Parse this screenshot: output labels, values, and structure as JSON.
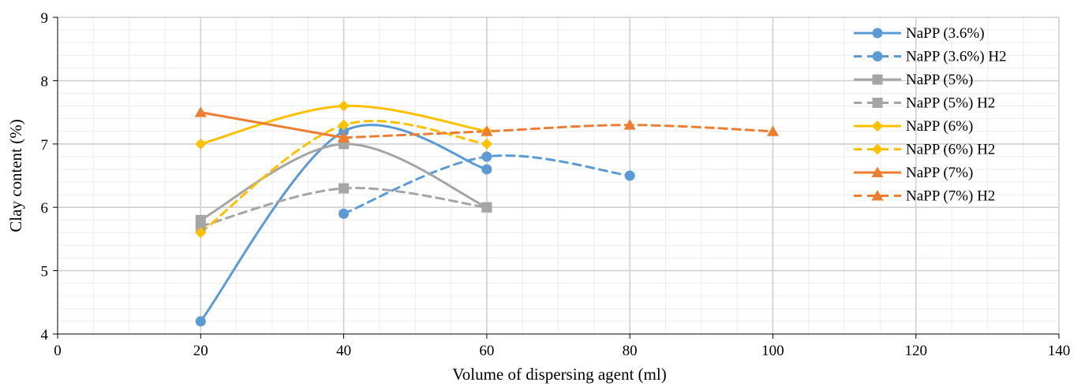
{
  "chart_data": {
    "type": "line",
    "title": "",
    "xlabel": "Volume of dispersing agent (ml)",
    "ylabel": "Clay content (%)",
    "xlim": [
      0,
      140
    ],
    "ylim": [
      4,
      9
    ],
    "xticks": [
      0,
      20,
      40,
      60,
      80,
      100,
      120,
      140
    ],
    "yticks": [
      4,
      5,
      6,
      7,
      8,
      9
    ],
    "x_tick_labels": [
      "0",
      "20",
      "40",
      "60",
      "80",
      "100",
      "120",
      "140"
    ],
    "y_tick_labels": [
      "4",
      "5",
      "6",
      "7",
      "8",
      "9"
    ],
    "grid": true,
    "minor_grid": true,
    "smooth": true,
    "legend_position": "right",
    "series": [
      {
        "name": "NaPP (3.6%)",
        "color": "#5b9bd5",
        "dash": "solid",
        "marker": "circle",
        "x": [
          20,
          40,
          60
        ],
        "y": [
          4.2,
          7.2,
          6.6
        ]
      },
      {
        "name": "NaPP (3.6%) H2",
        "color": "#5b9bd5",
        "dash": "dashed",
        "marker": "circle",
        "x": [
          40,
          60,
          80
        ],
        "y": [
          5.9,
          6.8,
          6.5
        ]
      },
      {
        "name": "NaPP (5%)",
        "color": "#a5a5a5",
        "dash": "solid",
        "marker": "square",
        "x": [
          20,
          40,
          60
        ],
        "y": [
          5.8,
          7.0,
          6.0
        ]
      },
      {
        "name": "NaPP (5%) H2",
        "color": "#a5a5a5",
        "dash": "dashed",
        "marker": "square",
        "x": [
          20,
          40,
          60
        ],
        "y": [
          5.7,
          6.3,
          6.0
        ]
      },
      {
        "name": "NaPP (6%)",
        "color": "#ffc000",
        "dash": "solid",
        "marker": "diamond",
        "x": [
          20,
          40,
          60
        ],
        "y": [
          7.0,
          7.6,
          7.2
        ]
      },
      {
        "name": "NaPP (6%) H2",
        "color": "#ffc000",
        "dash": "dashed",
        "marker": "diamond",
        "x": [
          20,
          40,
          60
        ],
        "y": [
          5.6,
          7.3,
          7.0
        ]
      },
      {
        "name": "NaPP (7%)",
        "color": "#ed7d31",
        "dash": "solid",
        "marker": "triangle",
        "x": [
          20,
          40
        ],
        "y": [
          7.5,
          7.1
        ]
      },
      {
        "name": "NaPP (7%) H2",
        "color": "#ed7d31",
        "dash": "dashed",
        "marker": "triangle",
        "x": [
          40,
          60,
          80,
          100
        ],
        "y": [
          7.1,
          7.2,
          7.3,
          7.2
        ]
      }
    ]
  }
}
